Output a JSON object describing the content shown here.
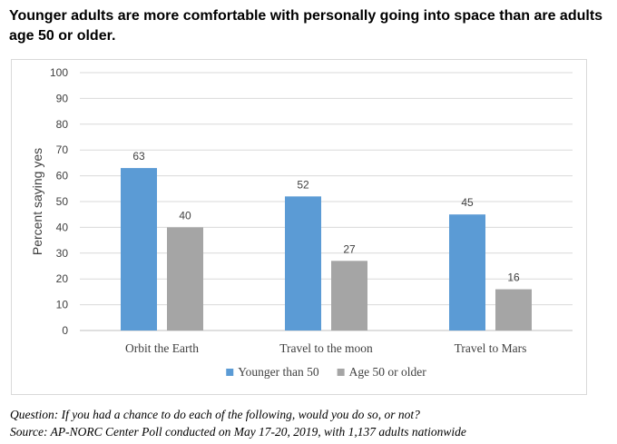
{
  "title": "Younger adults are more comfortable with personally going into space than are adults age 50 or older.",
  "footer": {
    "question": "Question: If you had a chance to do each of the following, would you do so, or not?",
    "source": "Source: AP-NORC Center Poll conducted on May 17-20, 2019, with 1,137 adults nationwide"
  },
  "chart_data": {
    "type": "bar",
    "categories": [
      "Orbit the Earth",
      "Travel to the moon",
      "Travel to Mars"
    ],
    "series": [
      {
        "name": "Younger than 50",
        "color": "#5b9bd5",
        "values": [
          63,
          52,
          45
        ]
      },
      {
        "name": "Age 50 or older",
        "color": "#a5a5a5",
        "values": [
          40,
          27,
          16
        ]
      }
    ],
    "xlabel": "",
    "ylabel": "Percent saying yes",
    "ylim": [
      0,
      100
    ],
    "yticks": [
      0,
      10,
      20,
      30,
      40,
      50,
      60,
      70,
      80,
      90,
      100
    ],
    "grid": true,
    "gridColor": "#d9d9d9",
    "legend": "bottom"
  }
}
